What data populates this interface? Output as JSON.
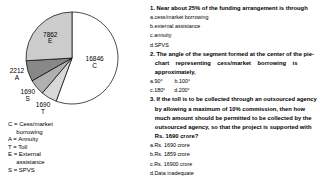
{
  "chart_data": {
    "type": "pie",
    "categories": [
      "C",
      "T",
      "S",
      "A",
      "E"
    ],
    "values": [
      16846,
      1690,
      1690,
      2212,
      7862
    ],
    "colors": [
      "#ffffff",
      "#d8d8d8",
      "#b0b0b0",
      "#888888",
      "#cccccc"
    ],
    "data_labels": true,
    "annotations": [
      [
        "C = Cess/market",
        "     borrowing",
        "A = Annuity",
        "T = Toll",
        "E = External",
        "     assistance",
        "S = SPVS"
      ],
      [
        "1. Near about 25% of the funding arrangement is through",
        "a.cess/market borrowing",
        "b.external assistance",
        "c.annuity",
        "d.SPVS",
        "2. The angle of the segment formed at the center of the pie-",
        "   chart    representing    cess/market    borrowing    is",
        "   approximately,",
        "a.90°        b.100°",
        "c.180°      d.200°",
        "3. If the toll is to be collected through an outsourced agency",
        "   by allowing a maximum of 10% commission, then how",
        "   much amount should be permitted to be collected by the",
        "   outsourced agency, so that the project is supported with",
        "   Rs. 1690 crore?",
        "a.Rs. 1690 crore",
        "b.Rs. 1859 crore",
        "c.Rs. 16900 crore",
        "d.Data inadequate"
      ]
    ]
  }
}
